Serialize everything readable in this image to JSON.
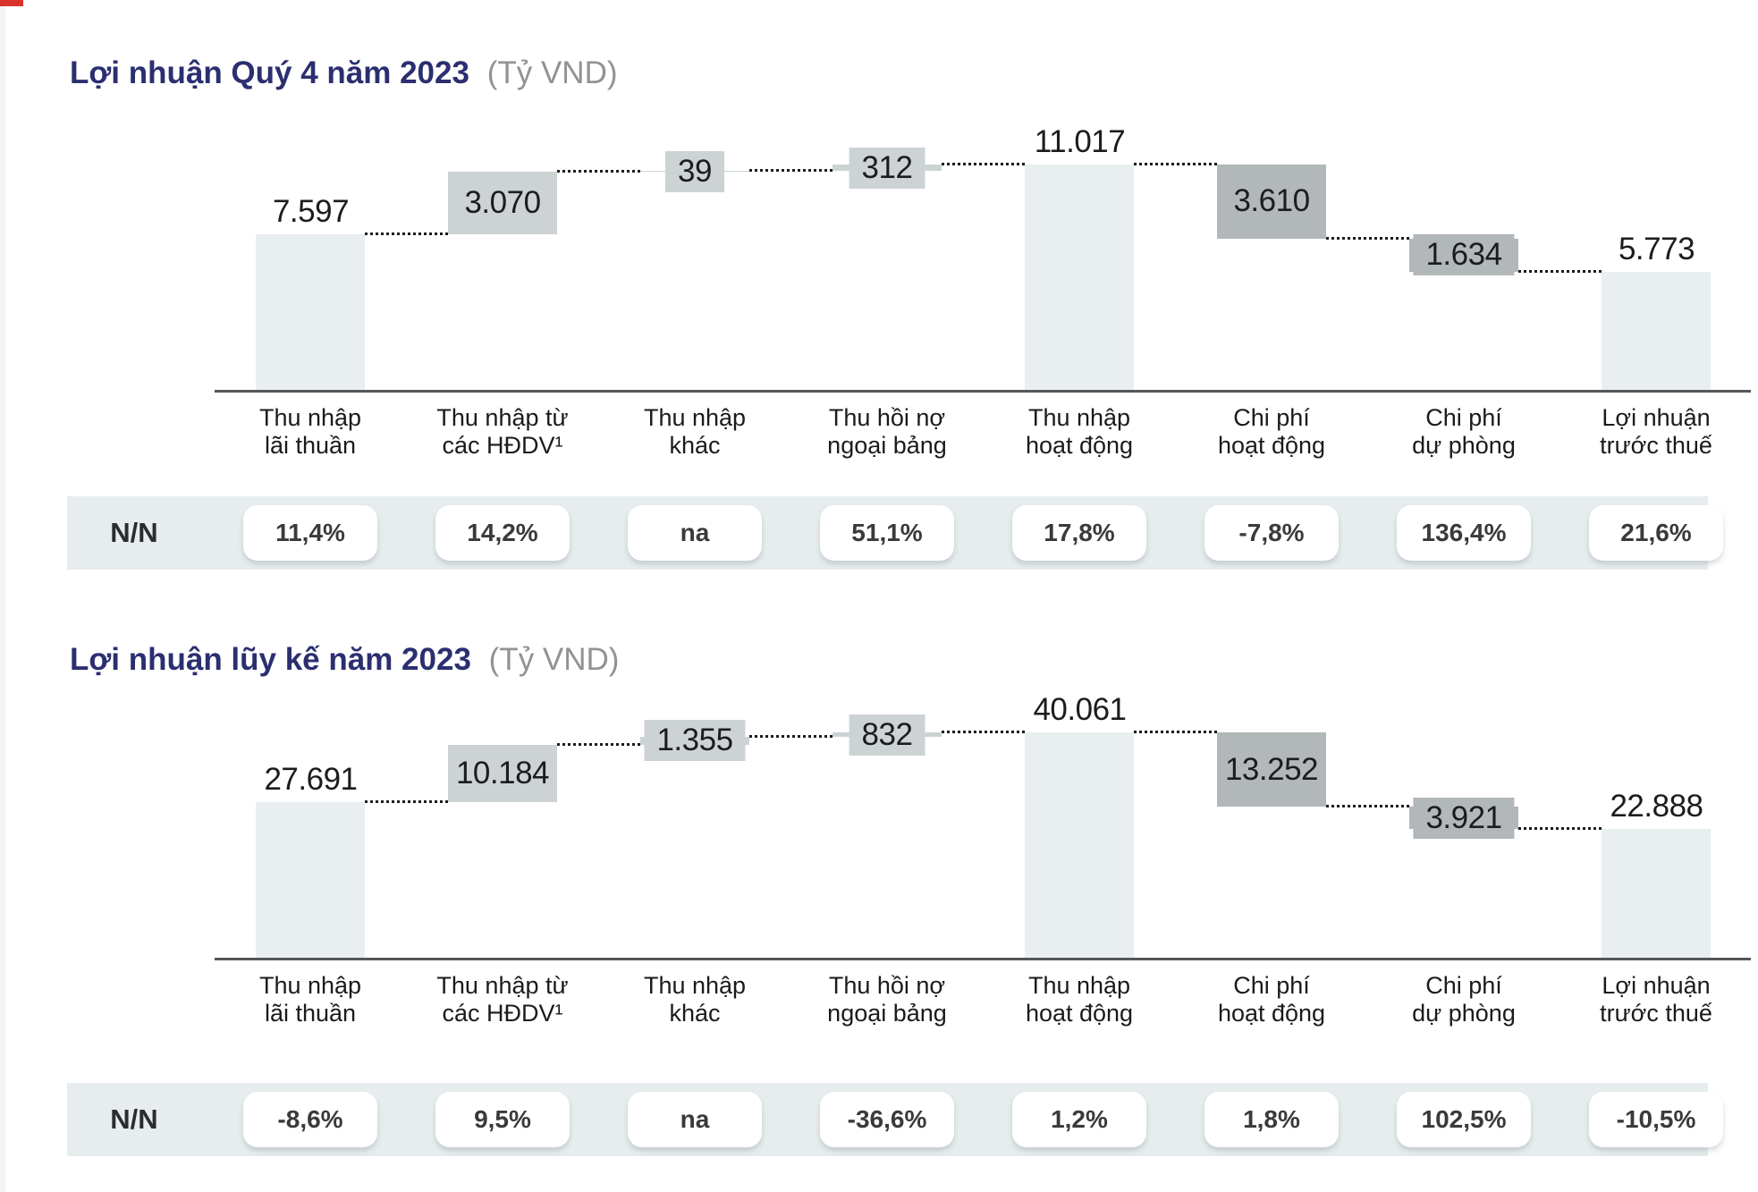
{
  "page": {
    "corner_mark_color": "#d9342b",
    "colors": {
      "total_bar": "#e9eff0",
      "increase_bar": "#cdd3d5",
      "decrease_bar": "#b2b7b9",
      "title_text": "#2b2f70",
      "unit_text": "#909294",
      "axis_line": "#54565a",
      "nn_strip": "#e7edee"
    }
  },
  "chart_data": [
    {
      "type": "bar",
      "subtype": "waterfall",
      "title": "Lợi nhuận Quý 4 năm 2023",
      "unit_label": "(Tỷ VND)",
      "ylim": [
        0,
        11017
      ],
      "grid": false,
      "legend": false,
      "categories": [
        "Thu nhập lãi thuần",
        "Thu nhập từ các HĐDV¹",
        "Thu nhập khác",
        "Thu hồi nợ ngoại bảng",
        "Thu nhập hoạt động",
        "Chi phí hoạt động",
        "Chi phí dự phòng",
        "Lợi nhuận trước thuế"
      ],
      "columns": [
        {
          "label_lines": [
            "Thu nhập",
            "lãi thuần"
          ],
          "value": 7597,
          "display": "7.597",
          "step": "total"
        },
        {
          "label_lines": [
            "Thu nhập từ",
            "các HĐDV¹"
          ],
          "value": 3070,
          "display": "3.070",
          "step": "increase"
        },
        {
          "label_lines": [
            "Thu nhập",
            "khác"
          ],
          "value": 39,
          "display": "39",
          "step": "increase"
        },
        {
          "label_lines": [
            "Thu hồi nợ",
            "ngoại bảng"
          ],
          "value": 312,
          "display": "312",
          "step": "increase"
        },
        {
          "label_lines": [
            "Thu nhập",
            "hoạt động"
          ],
          "value": 11017,
          "display": "11.017",
          "step": "total"
        },
        {
          "label_lines": [
            "Chi phí",
            "hoạt động"
          ],
          "value": 3610,
          "display": "3.610",
          "step": "decrease"
        },
        {
          "label_lines": [
            "Chi phí",
            "dự phòng"
          ],
          "value": 1634,
          "display": "1.634",
          "step": "decrease"
        },
        {
          "label_lines": [
            "Lợi nhuận",
            "trước thuế"
          ],
          "value": 5773,
          "display": "5.773",
          "step": "total"
        }
      ],
      "nn_row": {
        "label": "N/N",
        "values": [
          "11,4%",
          "14,2%",
          "na",
          "51,1%",
          "17,8%",
          "-7,8%",
          "136,4%",
          "21,6%"
        ]
      }
    },
    {
      "type": "bar",
      "subtype": "waterfall",
      "title": "Lợi nhuận lũy kế năm 2023",
      "unit_label": "(Tỷ VND)",
      "ylim": [
        0,
        40061
      ],
      "grid": false,
      "legend": false,
      "categories": [
        "Thu nhập lãi thuần",
        "Thu nhập từ các HĐDV¹",
        "Thu nhập khác",
        "Thu hồi nợ ngoại bảng",
        "Thu nhập hoạt động",
        "Chi phí hoạt động",
        "Chi phí dự phòng",
        "Lợi nhuận trước thuế"
      ],
      "columns": [
        {
          "label_lines": [
            "Thu nhập",
            "lãi thuần"
          ],
          "value": 27691,
          "display": "27.691",
          "step": "total"
        },
        {
          "label_lines": [
            "Thu nhập từ",
            "các HĐDV¹"
          ],
          "value": 10184,
          "display": "10.184",
          "step": "increase"
        },
        {
          "label_lines": [
            "Thu nhập",
            "khác"
          ],
          "value": 1355,
          "display": "1.355",
          "step": "increase"
        },
        {
          "label_lines": [
            "Thu hồi nợ",
            "ngoại bảng"
          ],
          "value": 832,
          "display": "832",
          "step": "increase"
        },
        {
          "label_lines": [
            "Thu nhập",
            "hoạt động"
          ],
          "value": 40061,
          "display": "40.061",
          "step": "total"
        },
        {
          "label_lines": [
            "Chi phí",
            "hoạt động"
          ],
          "value": 13252,
          "display": "13.252",
          "step": "decrease"
        },
        {
          "label_lines": [
            "Chi phí",
            "dự phòng"
          ],
          "value": 3921,
          "display": "3.921",
          "step": "decrease"
        },
        {
          "label_lines": [
            "Lợi nhuận",
            "trước thuế"
          ],
          "value": 22888,
          "display": "22.888",
          "step": "total"
        }
      ],
      "nn_row": {
        "label": "N/N",
        "values": [
          "-8,6%",
          "9,5%",
          "na",
          "-36,6%",
          "1,2%",
          "1,8%",
          "102,5%",
          "-10,5%"
        ]
      }
    }
  ]
}
